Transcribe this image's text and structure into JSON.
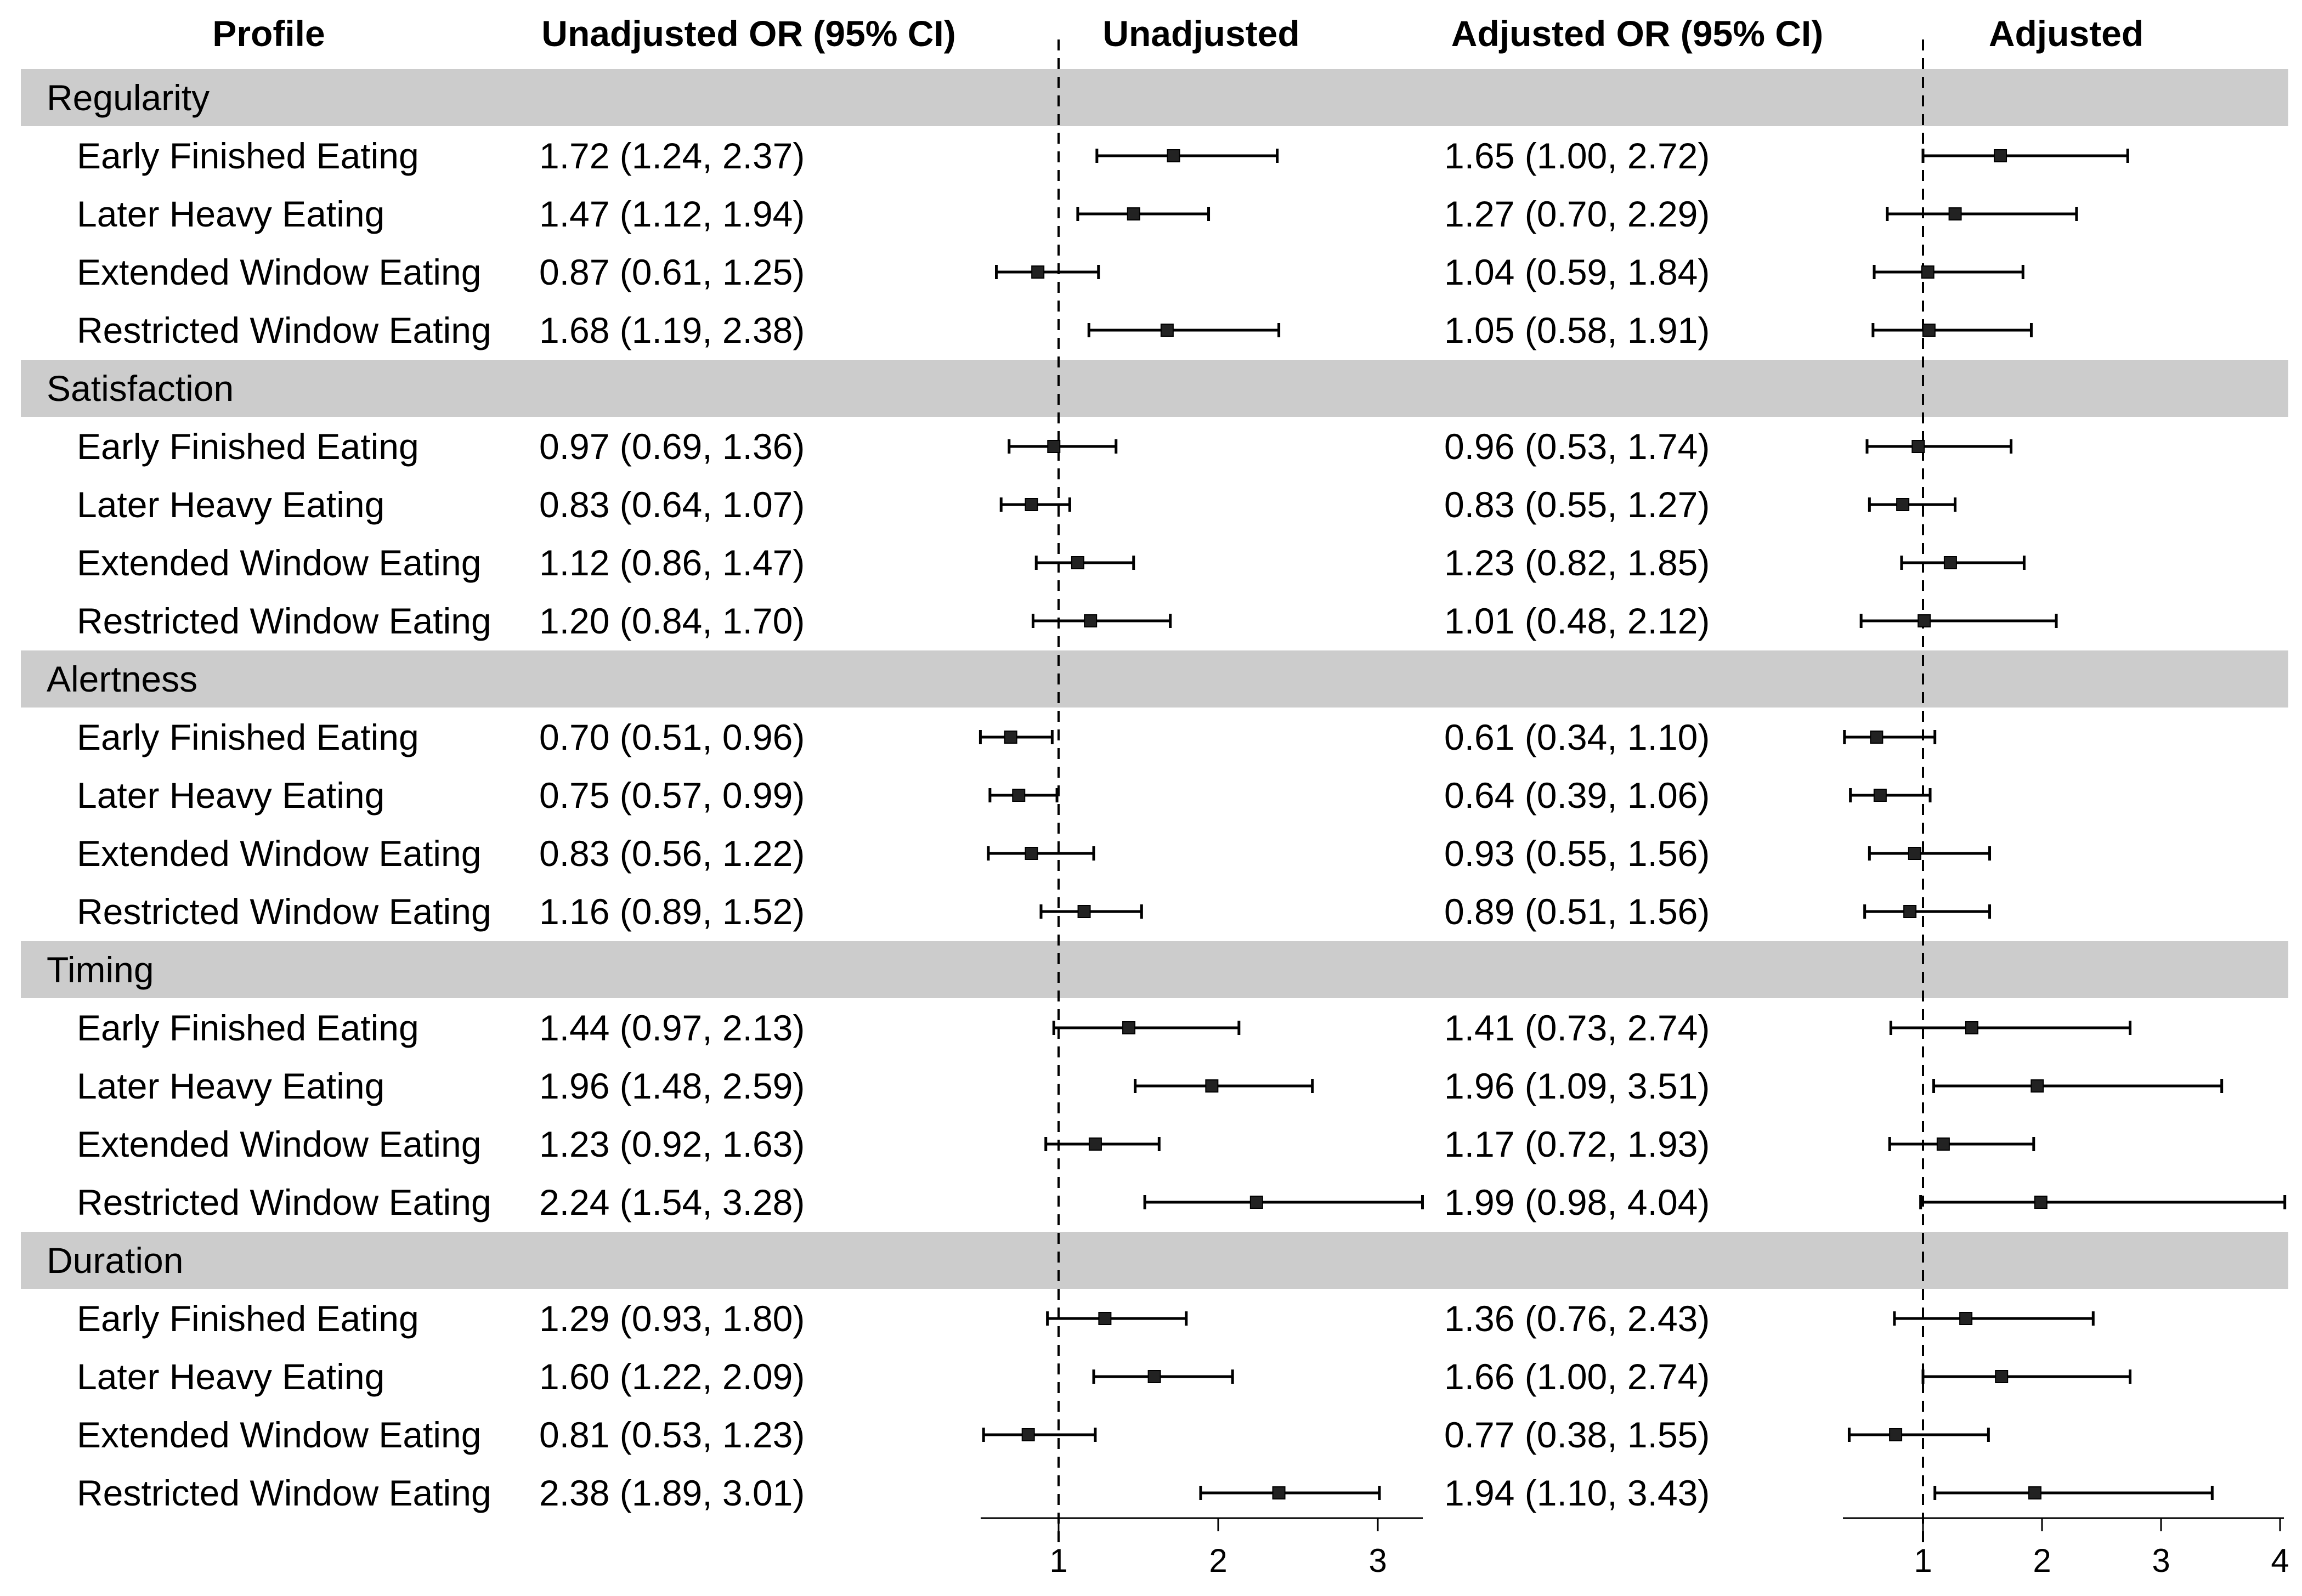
{
  "chart_data": {
    "type": "forest",
    "headers": {
      "profile": "Profile",
      "unadj_text": "Unadjusted OR (95% CI)",
      "unadj_plot": "Unadjusted",
      "adj_text": "Adjusted OR (95% CI)",
      "adj_plot": "Adjusted"
    },
    "reference_line": 1,
    "panels": {
      "unadjusted": {
        "xlim": [
          0.5,
          3.3
        ],
        "ticks": [
          1,
          2,
          3
        ],
        "tick_labels": [
          "1",
          "2",
          "3"
        ]
      },
      "adjusted": {
        "xlim": [
          0.4,
          4.05
        ],
        "ticks": [
          1,
          2,
          3,
          4
        ],
        "tick_labels": [
          "1",
          "2",
          "3",
          "4"
        ]
      }
    },
    "groups": [
      {
        "name": "Regularity",
        "rows": [
          {
            "profile": "Early Finished Eating",
            "unadj": {
              "or": 1.72,
              "lo": 1.24,
              "hi": 2.37,
              "text": "1.72 (1.24, 2.37)"
            },
            "adj": {
              "or": 1.65,
              "lo": 1.0,
              "hi": 2.72,
              "text": "1.65 (1.00, 2.72)"
            }
          },
          {
            "profile": "Later Heavy Eating",
            "unadj": {
              "or": 1.47,
              "lo": 1.12,
              "hi": 1.94,
              "text": "1.47 (1.12, 1.94)"
            },
            "adj": {
              "or": 1.27,
              "lo": 0.7,
              "hi": 2.29,
              "text": "1.27 (0.70, 2.29)"
            }
          },
          {
            "profile": "Extended Window Eating",
            "unadj": {
              "or": 0.87,
              "lo": 0.61,
              "hi": 1.25,
              "text": "0.87 (0.61, 1.25)"
            },
            "adj": {
              "or": 1.04,
              "lo": 0.59,
              "hi": 1.84,
              "text": "1.04 (0.59, 1.84)"
            }
          },
          {
            "profile": "Restricted Window Eating",
            "unadj": {
              "or": 1.68,
              "lo": 1.19,
              "hi": 2.38,
              "text": "1.68 (1.19, 2.38)"
            },
            "adj": {
              "or": 1.05,
              "lo": 0.58,
              "hi": 1.91,
              "text": "1.05 (0.58, 1.91)"
            }
          }
        ]
      },
      {
        "name": "Satisfaction",
        "rows": [
          {
            "profile": "Early Finished Eating",
            "unadj": {
              "or": 0.97,
              "lo": 0.69,
              "hi": 1.36,
              "text": "0.97 (0.69, 1.36)"
            },
            "adj": {
              "or": 0.96,
              "lo": 0.53,
              "hi": 1.74,
              "text": "0.96 (0.53, 1.74)"
            }
          },
          {
            "profile": "Later Heavy Eating",
            "unadj": {
              "or": 0.83,
              "lo": 0.64,
              "hi": 1.07,
              "text": "0.83 (0.64, 1.07)"
            },
            "adj": {
              "or": 0.83,
              "lo": 0.55,
              "hi": 1.27,
              "text": "0.83 (0.55, 1.27)"
            }
          },
          {
            "profile": "Extended Window Eating",
            "unadj": {
              "or": 1.12,
              "lo": 0.86,
              "hi": 1.47,
              "text": "1.12 (0.86, 1.47)"
            },
            "adj": {
              "or": 1.23,
              "lo": 0.82,
              "hi": 1.85,
              "text": "1.23 (0.82, 1.85)"
            }
          },
          {
            "profile": "Restricted Window Eating",
            "unadj": {
              "or": 1.2,
              "lo": 0.84,
              "hi": 1.7,
              "text": "1.20 (0.84, 1.70)"
            },
            "adj": {
              "or": 1.01,
              "lo": 0.48,
              "hi": 2.12,
              "text": "1.01 (0.48, 2.12)"
            }
          }
        ]
      },
      {
        "name": "Alertness",
        "rows": [
          {
            "profile": "Early Finished Eating",
            "unadj": {
              "or": 0.7,
              "lo": 0.51,
              "hi": 0.96,
              "text": "0.70 (0.51, 0.96)"
            },
            "adj": {
              "or": 0.61,
              "lo": 0.34,
              "hi": 1.1,
              "text": "0.61 (0.34, 1.10)"
            }
          },
          {
            "profile": "Later Heavy Eating",
            "unadj": {
              "or": 0.75,
              "lo": 0.57,
              "hi": 0.99,
              "text": "0.75 (0.57, 0.99)"
            },
            "adj": {
              "or": 0.64,
              "lo": 0.39,
              "hi": 1.06,
              "text": "0.64 (0.39, 1.06)"
            }
          },
          {
            "profile": "Extended Window Eating",
            "unadj": {
              "or": 0.83,
              "lo": 0.56,
              "hi": 1.22,
              "text": "0.83 (0.56, 1.22)"
            },
            "adj": {
              "or": 0.93,
              "lo": 0.55,
              "hi": 1.56,
              "text": "0.93 (0.55, 1.56)"
            }
          },
          {
            "profile": "Restricted Window Eating",
            "unadj": {
              "or": 1.16,
              "lo": 0.89,
              "hi": 1.52,
              "text": "1.16 (0.89, 1.52)"
            },
            "adj": {
              "or": 0.89,
              "lo": 0.51,
              "hi": 1.56,
              "text": "0.89 (0.51, 1.56)"
            }
          }
        ]
      },
      {
        "name": "Timing",
        "rows": [
          {
            "profile": "Early Finished Eating",
            "unadj": {
              "or": 1.44,
              "lo": 0.97,
              "hi": 2.13,
              "text": "1.44 (0.97, 2.13)"
            },
            "adj": {
              "or": 1.41,
              "lo": 0.73,
              "hi": 2.74,
              "text": "1.41 (0.73, 2.74)"
            }
          },
          {
            "profile": "Later Heavy Eating",
            "unadj": {
              "or": 1.96,
              "lo": 1.48,
              "hi": 2.59,
              "text": "1.96 (1.48, 2.59)"
            },
            "adj": {
              "or": 1.96,
              "lo": 1.09,
              "hi": 3.51,
              "text": "1.96 (1.09, 3.51)"
            }
          },
          {
            "profile": "Extended Window Eating",
            "unadj": {
              "or": 1.23,
              "lo": 0.92,
              "hi": 1.63,
              "text": "1.23 (0.92, 1.63)"
            },
            "adj": {
              "or": 1.17,
              "lo": 0.72,
              "hi": 1.93,
              "text": "1.17 (0.72, 1.93)"
            }
          },
          {
            "profile": "Restricted Window Eating",
            "unadj": {
              "or": 2.24,
              "lo": 1.54,
              "hi": 3.28,
              "text": "2.24 (1.54, 3.28)"
            },
            "adj": {
              "or": 1.99,
              "lo": 0.98,
              "hi": 4.04,
              "text": "1.99 (0.98, 4.04)"
            }
          }
        ]
      },
      {
        "name": "Duration",
        "rows": [
          {
            "profile": "Early Finished Eating",
            "unadj": {
              "or": 1.29,
              "lo": 0.93,
              "hi": 1.8,
              "text": "1.29 (0.93, 1.80)"
            },
            "adj": {
              "or": 1.36,
              "lo": 0.76,
              "hi": 2.43,
              "text": "1.36 (0.76, 2.43)"
            }
          },
          {
            "profile": "Later Heavy Eating",
            "unadj": {
              "or": 1.6,
              "lo": 1.22,
              "hi": 2.09,
              "text": "1.60 (1.22, 2.09)"
            },
            "adj": {
              "or": 1.66,
              "lo": 1.0,
              "hi": 2.74,
              "text": "1.66 (1.00, 2.74)"
            }
          },
          {
            "profile": "Extended Window Eating",
            "unadj": {
              "or": 0.81,
              "lo": 0.53,
              "hi": 1.23,
              "text": "0.81 (0.53, 1.23)"
            },
            "adj": {
              "or": 0.77,
              "lo": 0.38,
              "hi": 1.55,
              "text": "0.77 (0.38, 1.55)"
            }
          },
          {
            "profile": "Restricted Window Eating",
            "unadj": {
              "or": 2.38,
              "lo": 1.89,
              "hi": 3.01,
              "text": "2.38 (1.89, 3.01)"
            },
            "adj": {
              "or": 1.94,
              "lo": 1.1,
              "hi": 3.43,
              "text": "1.94 (1.10, 3.43)"
            }
          }
        ]
      }
    ]
  }
}
